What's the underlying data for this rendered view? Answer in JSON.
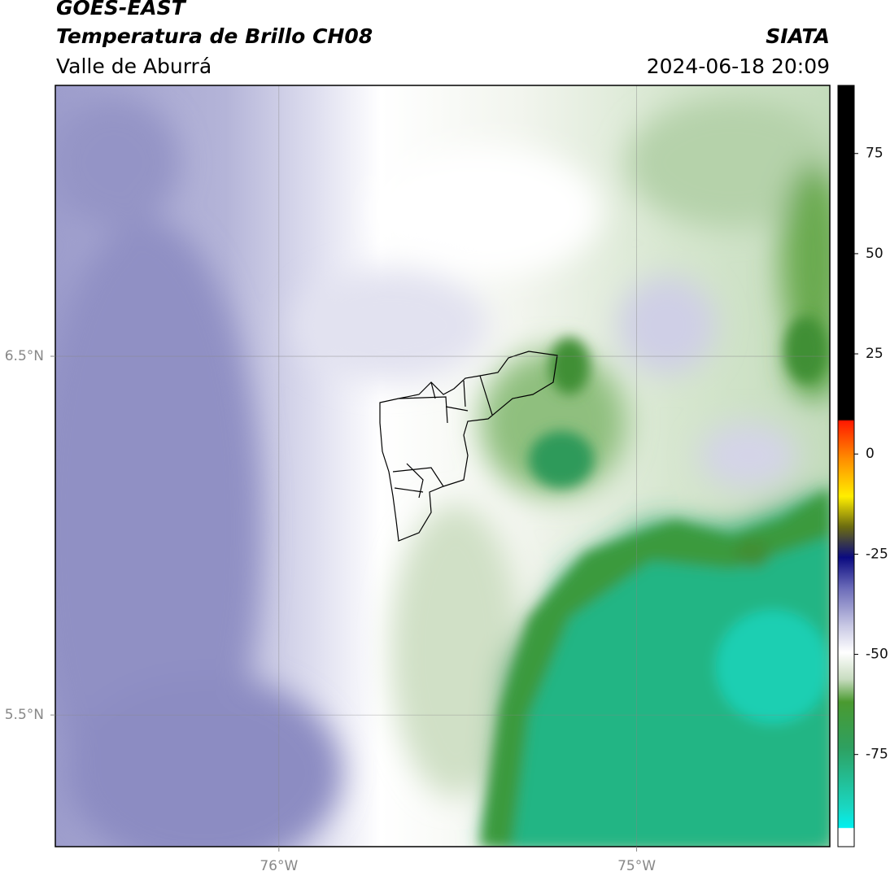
{
  "header": {
    "title": "GOES-EAST",
    "subtitle": "Temperatura de Brillo CH08",
    "region": "Valle de Aburrá",
    "source": "SIATA",
    "datetime": "2024-06-18 20:09"
  },
  "map": {
    "xlim": [
      -76.625,
      -74.46
    ],
    "ylim": [
      5.133,
      7.255
    ],
    "xticks": [
      {
        "value": -76,
        "label": "76°W"
      },
      {
        "value": -75,
        "label": "75°W"
      }
    ],
    "yticks": [
      {
        "value": 6.5,
        "label": "6.5°N"
      },
      {
        "value": 5.5,
        "label": "5.5°N"
      }
    ],
    "grid": true
  },
  "colorbar": {
    "lim": [
      -98,
      92
    ],
    "ticks": [
      75,
      50,
      25,
      0,
      -25,
      -50,
      -75
    ]
  }
}
